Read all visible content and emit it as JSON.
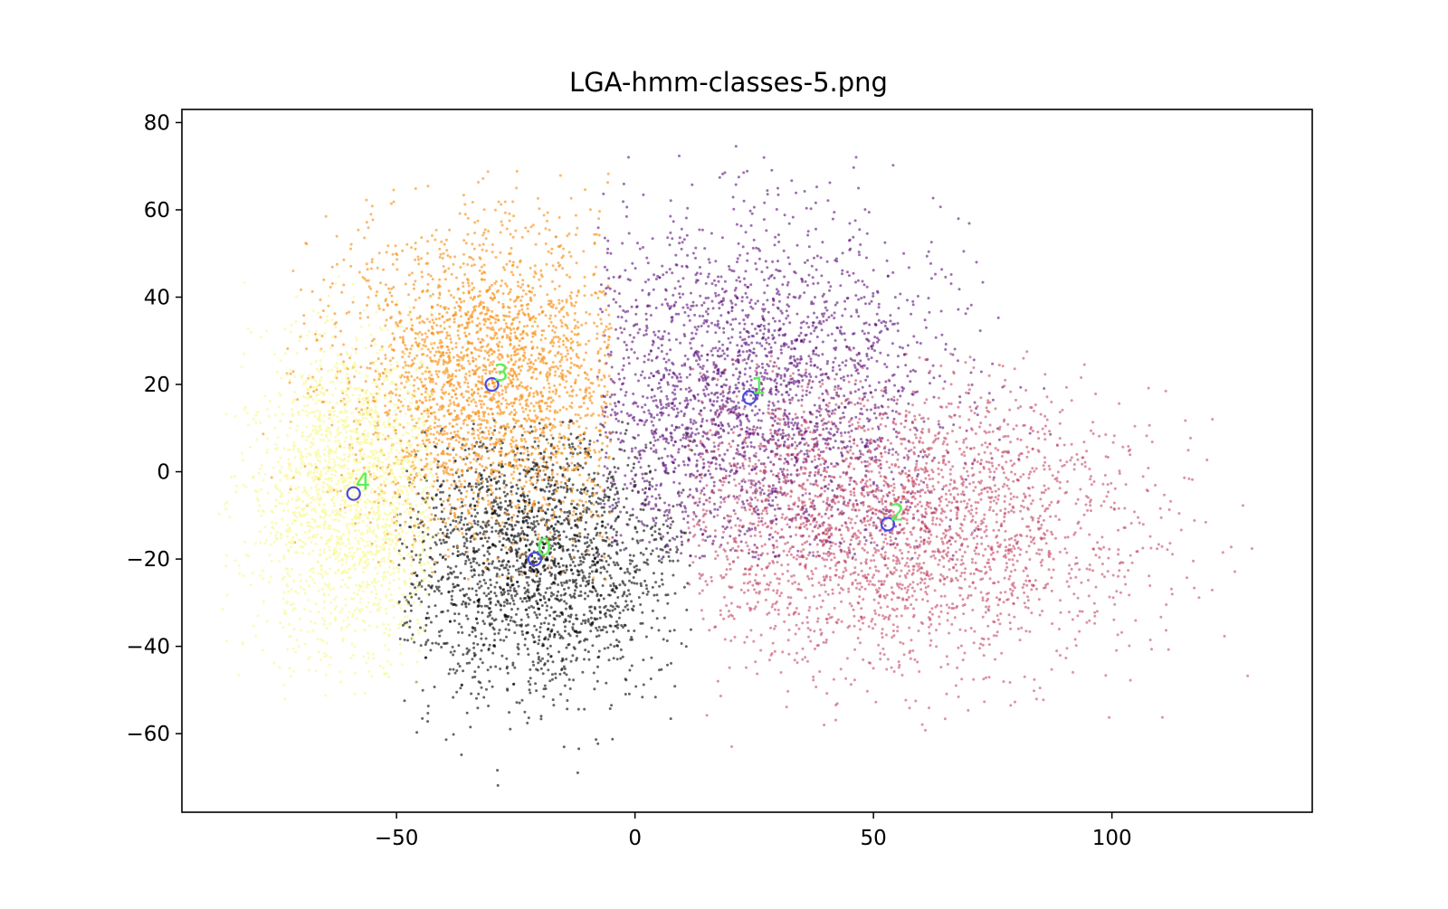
{
  "chart_data": {
    "type": "scatter",
    "title": "LGA-hmm-classes-5.png",
    "xlabel": "",
    "ylabel": "",
    "xlim": [
      -95,
      142
    ],
    "ylim": [
      -78,
      83
    ],
    "xticks": [
      -50,
      0,
      50,
      100
    ],
    "yticks": [
      -60,
      -40,
      -20,
      0,
      20,
      40,
      60,
      80
    ],
    "xtick_labels": [
      "−50",
      "0",
      "50",
      "100"
    ],
    "ytick_labels": [
      "−60",
      "−40",
      "−20",
      "0",
      "20",
      "40",
      "60",
      "80"
    ],
    "grid": false,
    "legend": "none",
    "clusters": [
      {
        "label": "0",
        "color": "#000000",
        "opacity": 0.6,
        "centroid": [
          -21,
          -20
        ],
        "x_range": [
          -50,
          12
        ],
        "y_range": [
          -72,
          12
        ],
        "spread": [
          16,
          16
        ],
        "count": 2200
      },
      {
        "label": "1",
        "color": "#5c0f78",
        "opacity": 0.6,
        "centroid": [
          24,
          17
        ],
        "x_range": [
          -8,
          92
        ],
        "y_range": [
          -20,
          76
        ],
        "spread": [
          20,
          20
        ],
        "count": 2600
      },
      {
        "label": "2",
        "color": "#bf3a5a",
        "opacity": 0.55,
        "centroid": [
          53,
          -12
        ],
        "x_range": [
          11,
          132
        ],
        "y_range": [
          -66,
          28
        ],
        "spread": [
          26,
          16
        ],
        "count": 2800
      },
      {
        "label": "3",
        "color": "#f7931b",
        "opacity": 0.65,
        "centroid": [
          -30,
          20
        ],
        "x_range": [
          -78,
          -5
        ],
        "y_range": [
          -25,
          70
        ],
        "spread": [
          17,
          19
        ],
        "count": 2600
      },
      {
        "label": "4",
        "color": "#fafa9a",
        "opacity": 0.7,
        "centroid": [
          -59,
          -5
        ],
        "x_range": [
          -88,
          -42
        ],
        "y_range": [
          -55,
          45
        ],
        "spread": [
          11,
          18
        ],
        "count": 1900
      }
    ],
    "marker_colors": {
      "centroid_ring": "#4a4ae0",
      "centroid_label": "#5af05a"
    }
  }
}
